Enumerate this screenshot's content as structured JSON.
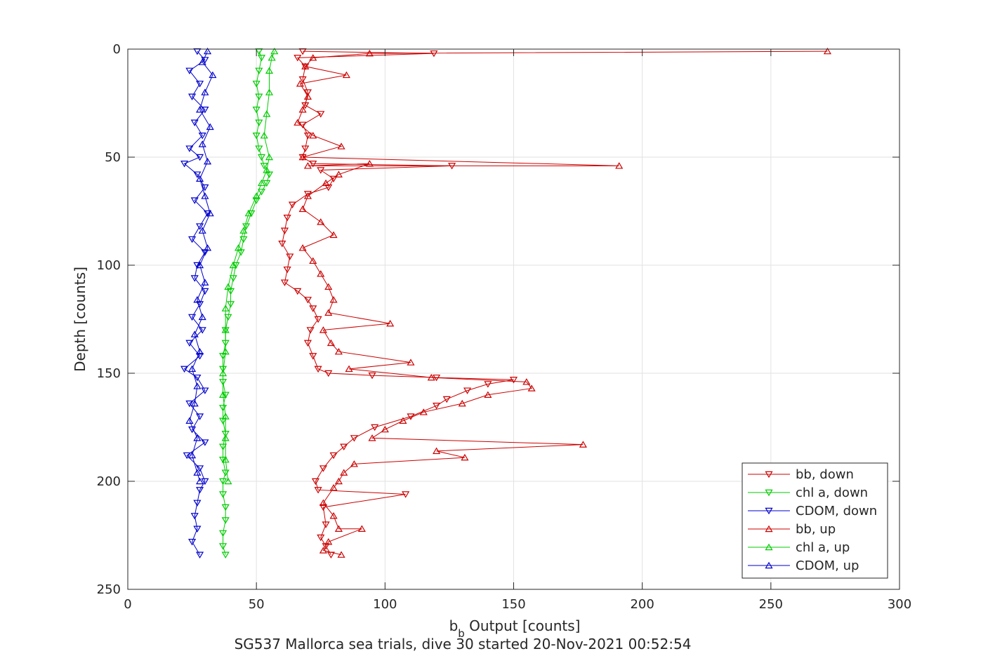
{
  "chart_data": {
    "type": "line",
    "title": "SG537 Mallorca sea trials, dive 30 started 20-Nov-2021 00:52:54",
    "xlabel": {
      "main": "b",
      "sub": "b",
      "rest": " Output [counts]"
    },
    "ylabel": "Depth [counts]",
    "xlim": [
      0,
      300
    ],
    "ylim": [
      0,
      250
    ],
    "y_reversed": true,
    "grid": true,
    "xticks": [
      "0",
      "50",
      "100",
      "150",
      "200",
      "250",
      "300"
    ],
    "yticks": [
      "0",
      "50",
      "100",
      "150",
      "200",
      "250"
    ],
    "legend_position": "bottom-right",
    "series": [
      {
        "name": "bb, down",
        "color": "#cc0000",
        "marker": "triangle-down",
        "points": [
          [
            68,
            1
          ],
          [
            119,
            2
          ],
          [
            66,
            4
          ],
          [
            69,
            8
          ],
          [
            68,
            14
          ],
          [
            70,
            20
          ],
          [
            69,
            26
          ],
          [
            75,
            30
          ],
          [
            68,
            35
          ],
          [
            70,
            40
          ],
          [
            69,
            46
          ],
          [
            68,
            50
          ],
          [
            72,
            53
          ],
          [
            126,
            54
          ],
          [
            75,
            56
          ],
          [
            80,
            60
          ],
          [
            78,
            64
          ],
          [
            70,
            67
          ],
          [
            64,
            72
          ],
          [
            62,
            78
          ],
          [
            61,
            84
          ],
          [
            60,
            90
          ],
          [
            63,
            96
          ],
          [
            62,
            102
          ],
          [
            61,
            108
          ],
          [
            66,
            112
          ],
          [
            70,
            116
          ],
          [
            72,
            120
          ],
          [
            74,
            125
          ],
          [
            71,
            130
          ],
          [
            70,
            136
          ],
          [
            72,
            142
          ],
          [
            74,
            148
          ],
          [
            78,
            150
          ],
          [
            95,
            151
          ],
          [
            120,
            152
          ],
          [
            150,
            153
          ],
          [
            140,
            155
          ],
          [
            132,
            158
          ],
          [
            124,
            162
          ],
          [
            120,
            165
          ],
          [
            110,
            170
          ],
          [
            96,
            175
          ],
          [
            88,
            180
          ],
          [
            84,
            184
          ],
          [
            80,
            188
          ],
          [
            76,
            194
          ],
          [
            73,
            200
          ],
          [
            74,
            204
          ],
          [
            108,
            206
          ],
          [
            76,
            212
          ],
          [
            77,
            220
          ],
          [
            75,
            226
          ],
          [
            77,
            230
          ],
          [
            79,
            234
          ]
        ]
      },
      {
        "name": "chl a, down",
        "color": "#00cc00",
        "marker": "triangle-down",
        "points": [
          [
            51,
            1
          ],
          [
            52,
            4
          ],
          [
            51,
            10
          ],
          [
            50,
            16
          ],
          [
            51,
            22
          ],
          [
            50,
            28
          ],
          [
            51,
            34
          ],
          [
            50,
            40
          ],
          [
            51,
            46
          ],
          [
            52,
            50
          ],
          [
            53,
            54
          ],
          [
            55,
            58
          ],
          [
            54,
            62
          ],
          [
            52,
            66
          ],
          [
            50,
            70
          ],
          [
            48,
            76
          ],
          [
            46,
            82
          ],
          [
            45,
            88
          ],
          [
            44,
            94
          ],
          [
            42,
            100
          ],
          [
            41,
            106
          ],
          [
            40,
            112
          ],
          [
            40,
            118
          ],
          [
            39,
            124
          ],
          [
            38,
            130
          ],
          [
            38,
            136
          ],
          [
            37,
            142
          ],
          [
            37,
            148
          ],
          [
            37,
            154
          ],
          [
            38,
            160
          ],
          [
            37,
            166
          ],
          [
            37,
            172
          ],
          [
            38,
            178
          ],
          [
            37,
            184
          ],
          [
            37,
            190
          ],
          [
            38,
            196
          ],
          [
            37,
            200
          ],
          [
            37,
            206
          ],
          [
            38,
            212
          ],
          [
            38,
            218
          ],
          [
            37,
            224
          ],
          [
            37,
            230
          ],
          [
            38,
            234
          ]
        ]
      },
      {
        "name": "CDOM, down",
        "color": "#0000cc",
        "marker": "triangle-down",
        "points": [
          [
            27,
            1
          ],
          [
            30,
            5
          ],
          [
            24,
            10
          ],
          [
            28,
            16
          ],
          [
            25,
            22
          ],
          [
            30,
            28
          ],
          [
            26,
            34
          ],
          [
            29,
            40
          ],
          [
            24,
            46
          ],
          [
            28,
            50
          ],
          [
            22,
            53
          ],
          [
            27,
            58
          ],
          [
            30,
            64
          ],
          [
            26,
            70
          ],
          [
            31,
            76
          ],
          [
            28,
            82
          ],
          [
            25,
            88
          ],
          [
            30,
            94
          ],
          [
            27,
            100
          ],
          [
            26,
            106
          ],
          [
            30,
            112
          ],
          [
            28,
            118
          ],
          [
            25,
            124
          ],
          [
            29,
            130
          ],
          [
            24,
            136
          ],
          [
            28,
            142
          ],
          [
            22,
            148
          ],
          [
            27,
            152
          ],
          [
            30,
            158
          ],
          [
            24,
            164
          ],
          [
            28,
            170
          ],
          [
            25,
            176
          ],
          [
            30,
            182
          ],
          [
            23,
            188
          ],
          [
            28,
            194
          ],
          [
            30,
            200
          ],
          [
            28,
            204
          ],
          [
            27,
            210
          ],
          [
            26,
            216
          ],
          [
            27,
            222
          ],
          [
            25,
            228
          ],
          [
            28,
            234
          ]
        ]
      },
      {
        "name": "bb, up",
        "color": "#cc0000",
        "marker": "triangle-up",
        "points": [
          [
            272,
            1
          ],
          [
            94,
            2
          ],
          [
            72,
            4
          ],
          [
            69,
            8
          ],
          [
            85,
            12
          ],
          [
            67,
            16
          ],
          [
            70,
            22
          ],
          [
            68,
            28
          ],
          [
            66,
            34
          ],
          [
            72,
            40
          ],
          [
            83,
            45
          ],
          [
            68,
            50
          ],
          [
            191,
            54
          ],
          [
            70,
            54
          ],
          [
            94,
            53
          ],
          [
            82,
            58
          ],
          [
            77,
            62
          ],
          [
            70,
            68
          ],
          [
            68,
            74
          ],
          [
            75,
            80
          ],
          [
            80,
            86
          ],
          [
            68,
            92
          ],
          [
            72,
            98
          ],
          [
            75,
            104
          ],
          [
            78,
            110
          ],
          [
            80,
            116
          ],
          [
            78,
            122
          ],
          [
            102,
            127
          ],
          [
            76,
            130
          ],
          [
            79,
            136
          ],
          [
            82,
            140
          ],
          [
            110,
            145
          ],
          [
            86,
            148
          ],
          [
            118,
            152
          ],
          [
            155,
            154
          ],
          [
            157,
            157
          ],
          [
            140,
            160
          ],
          [
            130,
            164
          ],
          [
            115,
            168
          ],
          [
            107,
            172
          ],
          [
            100,
            176
          ],
          [
            95,
            180
          ],
          [
            177,
            183
          ],
          [
            120,
            186
          ],
          [
            131,
            189
          ],
          [
            88,
            192
          ],
          [
            84,
            196
          ],
          [
            82,
            200
          ],
          [
            80,
            203
          ],
          [
            76,
            210
          ],
          [
            80,
            216
          ],
          [
            82,
            222
          ],
          [
            91,
            222
          ],
          [
            78,
            228
          ],
          [
            76,
            232
          ],
          [
            83,
            234
          ]
        ]
      },
      {
        "name": "chl a, up",
        "color": "#00cc00",
        "marker": "triangle-up",
        "points": [
          [
            57,
            1
          ],
          [
            56,
            4
          ],
          [
            55,
            10
          ],
          [
            55,
            20
          ],
          [
            54,
            30
          ],
          [
            53,
            40
          ],
          [
            55,
            50
          ],
          [
            54,
            56
          ],
          [
            52,
            62
          ],
          [
            50,
            68
          ],
          [
            47,
            76
          ],
          [
            45,
            84
          ],
          [
            43,
            92
          ],
          [
            41,
            100
          ],
          [
            39,
            110
          ],
          [
            38,
            120
          ],
          [
            38,
            130
          ],
          [
            38,
            140
          ],
          [
            37,
            150
          ],
          [
            37,
            160
          ],
          [
            38,
            170
          ],
          [
            38,
            180
          ],
          [
            38,
            190
          ],
          [
            39,
            200
          ]
        ]
      },
      {
        "name": "CDOM, up",
        "color": "#0000cc",
        "marker": "triangle-up",
        "points": [
          [
            31,
            1
          ],
          [
            29,
            6
          ],
          [
            33,
            12
          ],
          [
            30,
            20
          ],
          [
            28,
            28
          ],
          [
            32,
            36
          ],
          [
            29,
            44
          ],
          [
            31,
            52
          ],
          [
            28,
            60
          ],
          [
            30,
            68
          ],
          [
            32,
            76
          ],
          [
            29,
            84
          ],
          [
            31,
            92
          ],
          [
            28,
            100
          ],
          [
            30,
            108
          ],
          [
            27,
            116
          ],
          [
            29,
            124
          ],
          [
            26,
            132
          ],
          [
            28,
            140
          ],
          [
            25,
            148
          ],
          [
            27,
            156
          ],
          [
            26,
            164
          ],
          [
            24,
            172
          ],
          [
            27,
            180
          ],
          [
            25,
            188
          ],
          [
            27,
            196
          ],
          [
            28,
            200
          ]
        ]
      }
    ]
  }
}
